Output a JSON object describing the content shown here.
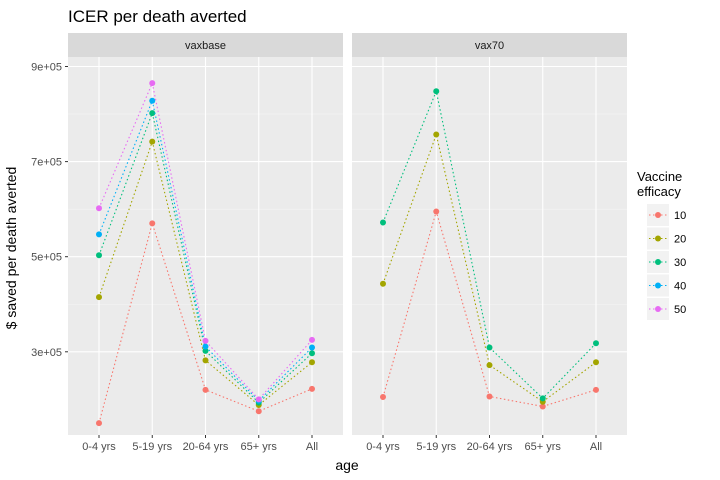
{
  "chart_data": {
    "type": "line",
    "title": "ICER per death averted",
    "xlabel": "age",
    "ylabel": "$ saved per death averted",
    "categories": [
      "0-4 yrs",
      "5-19 yrs",
      "20-64 yrs",
      "65+ yrs",
      "All"
    ],
    "yticks": [
      300000,
      500000,
      700000,
      900000
    ],
    "ytick_labels": [
      "3e+05",
      "5e+05",
      "7e+05",
      "9e+05"
    ],
    "ylim": [
      125000,
      920000
    ],
    "grid": true,
    "legend": {
      "title_lines": [
        "Vaccine",
        "efficacy"
      ],
      "placement": "right",
      "entries": [
        {
          "label": "10",
          "color": "#F8766D"
        },
        {
          "label": "20",
          "color": "#A3A500"
        },
        {
          "label": "30",
          "color": "#00BF7D"
        },
        {
          "label": "40",
          "color": "#00B0F6"
        },
        {
          "label": "50",
          "color": "#E76BF3"
        }
      ]
    },
    "panels": [
      {
        "label": "vaxbase",
        "series": [
          {
            "legend_index": 0,
            "values": [
              150000,
              570000,
              220000,
              175000,
              222000
            ]
          },
          {
            "legend_index": 1,
            "values": [
              415000,
              742000,
              282000,
              188000,
              278000
            ]
          },
          {
            "legend_index": 2,
            "values": [
              503000,
              802000,
              302000,
              193000,
              297000
            ]
          },
          {
            "legend_index": 3,
            "values": [
              547000,
              828000,
              311000,
              197000,
              309000
            ]
          },
          {
            "legend_index": 4,
            "values": [
              602000,
              865000,
              323000,
              200000,
              325000
            ]
          }
        ]
      },
      {
        "label": "vax70",
        "series": [
          {
            "legend_index": 0,
            "values": [
              205000,
              595000,
              206000,
              185000,
              220000
            ]
          },
          {
            "legend_index": 1,
            "values": [
              443000,
              757000,
              272000,
              195000,
              278000
            ]
          },
          {
            "legend_index": 2,
            "values": [
              572000,
              848000,
              309000,
              202000,
              318000
            ]
          }
        ]
      }
    ]
  }
}
